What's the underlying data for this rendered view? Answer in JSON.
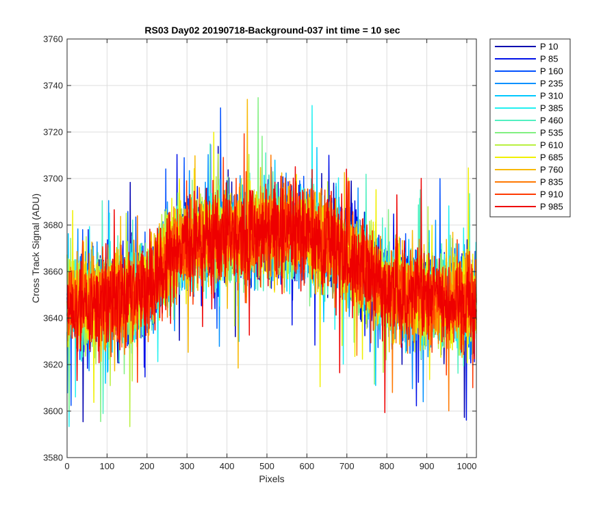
{
  "chart_data": {
    "type": "line",
    "title": "RS03 Day02 20190718-Background-037 int time = 10 sec",
    "xlabel": "Pixels",
    "ylabel": "Cross Track Signal (ADU)",
    "xlim": [
      0,
      1024
    ],
    "ylim": [
      3580,
      3760
    ],
    "xticks": [
      0,
      100,
      200,
      300,
      400,
      500,
      600,
      700,
      800,
      900,
      1000
    ],
    "yticks": [
      3580,
      3600,
      3620,
      3640,
      3660,
      3680,
      3700,
      3720,
      3740,
      3760
    ],
    "grid": true,
    "legend_position": "outside-top-right",
    "profile": {
      "x": [
        0,
        100,
        200,
        250,
        300,
        400,
        500,
        600,
        700,
        800,
        900,
        1024
      ],
      "y": [
        3645,
        3647,
        3652,
        3665,
        3672,
        3675,
        3677,
        3676,
        3668,
        3652,
        3648,
        3647
      ]
    },
    "series": [
      {
        "name": "P 10",
        "color": "#0000b0"
      },
      {
        "name": "P 85",
        "color": "#0010e8"
      },
      {
        "name": "P 160",
        "color": "#0050ff"
      },
      {
        "name": "P 235",
        "color": "#0090ff"
      },
      {
        "name": "P 310",
        "color": "#00c8ff"
      },
      {
        "name": "P 385",
        "color": "#20f0f0"
      },
      {
        "name": "P 460",
        "color": "#50f0c0"
      },
      {
        "name": "P 535",
        "color": "#80f080"
      },
      {
        "name": "P 610",
        "color": "#b8f040"
      },
      {
        "name": "P 685",
        "color": "#f0f000"
      },
      {
        "name": "P 760",
        "color": "#f8b800"
      },
      {
        "name": "P 835",
        "color": "#ff7800"
      },
      {
        "name": "P 910",
        "color": "#ff3800"
      },
      {
        "name": "P 985",
        "color": "#ee0000"
      }
    ]
  }
}
